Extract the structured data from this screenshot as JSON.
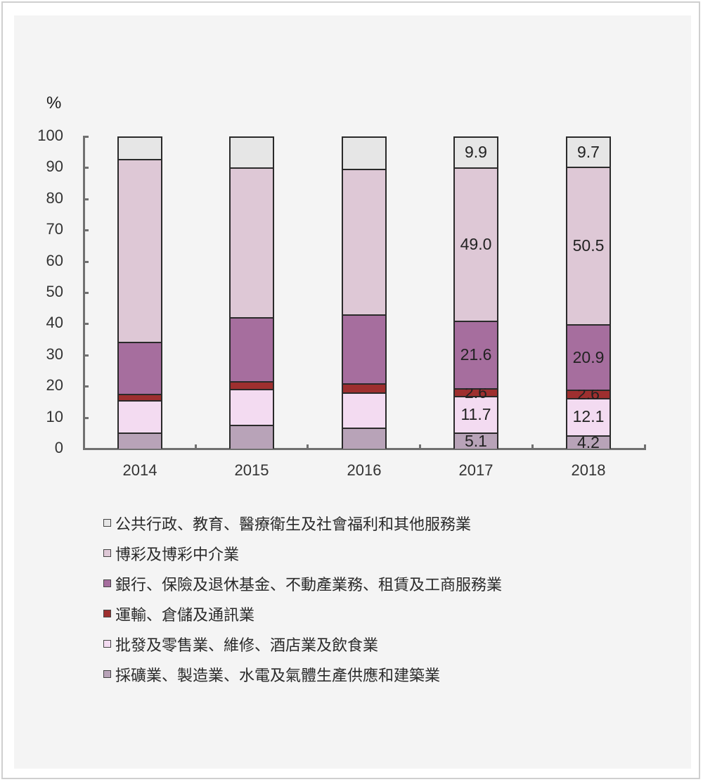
{
  "chart_data": {
    "type": "bar",
    "stacked": true,
    "title": "",
    "xlabel": "",
    "ylabel": "%",
    "ylim": [
      0,
      100
    ],
    "yticks": [
      "0",
      "10",
      "20",
      "30",
      "40",
      "50",
      "60",
      "70",
      "80",
      "90",
      "100"
    ],
    "grid": false,
    "legend_position": "bottom",
    "categories": [
      "2014",
      "2015",
      "2016",
      "2017",
      "2018"
    ],
    "series": [
      {
        "name": "採礦業、製造業、水電及氣體生產供應和建築業",
        "color": "#b8a3b8",
        "values": [
          5.2,
          7.7,
          6.8,
          5.1,
          4.2
        ],
        "labels": [
          "",
          "",
          "",
          "5.1",
          "4.2"
        ]
      },
      {
        "name": "批發及零售業、維修、酒店業及飲食業",
        "color": "#f3dbf1",
        "values": [
          10.3,
          11.4,
          11.2,
          11.7,
          12.1
        ],
        "labels": [
          "",
          "",
          "",
          "11.7",
          "12.1"
        ]
      },
      {
        "name": "運輸、倉儲及通訊業",
        "color": "#9e2f2f",
        "values": [
          2.1,
          2.5,
          2.9,
          2.6,
          2.6
        ],
        "labels": [
          "",
          "",
          "",
          "2.6",
          "2.6"
        ]
      },
      {
        "name": "銀行、保險及退休基金、不動產業務、租賃及工商服務業",
        "color": "#a66e9e",
        "values": [
          16.6,
          20.5,
          22.1,
          21.6,
          20.9
        ],
        "labels": [
          "",
          "",
          "",
          "21.6",
          "20.9"
        ]
      },
      {
        "name": "博彩及博彩中介業",
        "color": "#dec8d6",
        "values": [
          58.6,
          47.9,
          46.6,
          49.0,
          50.5
        ],
        "labels": [
          "",
          "",
          "",
          "49.0",
          "50.5"
        ]
      },
      {
        "name": "公共行政、教育、醫療衛生及社會福利和其他服務業",
        "color": "#e6e6e6",
        "values": [
          7.2,
          10.0,
          10.4,
          9.9,
          9.7
        ],
        "labels": [
          "",
          "",
          "",
          "9.9",
          "9.7"
        ]
      }
    ]
  },
  "legend": [
    {
      "label": "公共行政、教育、醫療衛生及社會福利和其他服務業",
      "color": "#e6e6e6"
    },
    {
      "label": "博彩及博彩中介業",
      "color": "#dec8d6"
    },
    {
      "label": "銀行、保險及退休基金、不動產業務、租賃及工商服務業",
      "color": "#a66e9e"
    },
    {
      "label": "運輸、倉儲及通訊業",
      "color": "#9e2f2f"
    },
    {
      "label": "批發及零售業、維修、酒店業及飲食業",
      "color": "#f3dbf1"
    },
    {
      "label": "採礦業、製造業、水電及氣體生產供應和建築業",
      "color": "#b8a3b8"
    }
  ]
}
